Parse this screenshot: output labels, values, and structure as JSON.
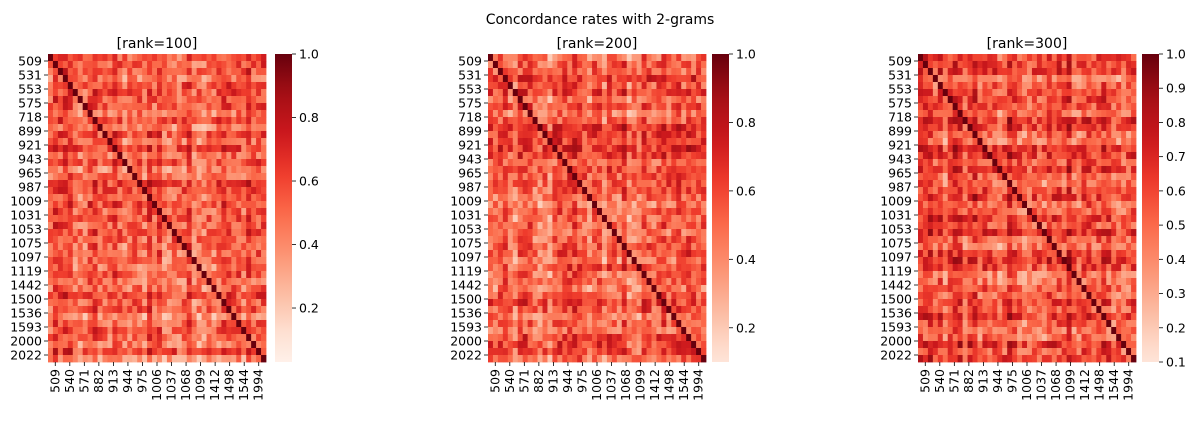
{
  "figure": {
    "suptitle": "Concordance rates with 2-grams"
  },
  "chart_data": [
    {
      "type": "heatmap",
      "title": "[rank=100]",
      "colormap": "Reds",
      "y_tick_labels": [
        "509",
        "531",
        "553",
        "575",
        "718",
        "899",
        "921",
        "943",
        "965",
        "987",
        "1009",
        "1031",
        "1053",
        "1075",
        "1097",
        "1119",
        "1442",
        "1500",
        "1536",
        "1593",
        "2000",
        "2022"
      ],
      "x_tick_labels": [
        "509",
        "540",
        "571",
        "882",
        "913",
        "944",
        "975",
        "1006",
        "1037",
        "1068",
        "1099",
        "1412",
        "1498",
        "1544",
        "1994"
      ],
      "colorbar": {
        "range": [
          0.03,
          1.0
        ],
        "ticks": [
          0.2,
          0.4,
          0.6,
          0.8,
          1.0
        ],
        "tick_labels": [
          "0.2",
          "0.4",
          "0.6",
          "0.8",
          "1.0"
        ]
      }
    },
    {
      "type": "heatmap",
      "title": "[rank=200]",
      "colormap": "Reds",
      "y_tick_labels": [
        "509",
        "531",
        "553",
        "575",
        "718",
        "899",
        "921",
        "943",
        "965",
        "987",
        "1009",
        "1031",
        "1053",
        "1075",
        "1097",
        "1119",
        "1442",
        "1500",
        "1536",
        "1593",
        "2000",
        "2022"
      ],
      "x_tick_labels": [
        "509",
        "540",
        "571",
        "882",
        "913",
        "944",
        "975",
        "1006",
        "1037",
        "1068",
        "1099",
        "1412",
        "1498",
        "1544",
        "1994"
      ],
      "colorbar": {
        "range": [
          0.1,
          1.0
        ],
        "ticks": [
          0.2,
          0.4,
          0.6,
          0.8,
          1.0
        ],
        "tick_labels": [
          "0.2",
          "0.4",
          "0.6",
          "0.8",
          "1.0"
        ]
      }
    },
    {
      "type": "heatmap",
      "title": "[rank=300]",
      "colormap": "Reds",
      "y_tick_labels": [
        "509",
        "531",
        "553",
        "575",
        "718",
        "899",
        "921",
        "943",
        "965",
        "987",
        "1009",
        "1031",
        "1053",
        "1075",
        "1097",
        "1119",
        "1442",
        "1500",
        "1536",
        "1593",
        "2000",
        "2022"
      ],
      "x_tick_labels": [
        "509",
        "540",
        "571",
        "882",
        "913",
        "944",
        "975",
        "1006",
        "1037",
        "1068",
        "1099",
        "1412",
        "1498",
        "1544",
        "1994"
      ],
      "colorbar": {
        "range": [
          0.1,
          1.0
        ],
        "ticks": [
          0.1,
          0.2,
          0.3,
          0.4,
          0.5,
          0.6,
          0.7,
          0.8,
          0.9,
          1.0
        ],
        "tick_labels": [
          "0.1",
          "0.2",
          "0.3",
          "0.4",
          "0.5",
          "0.6",
          "0.7",
          "0.8",
          "0.9",
          "1.0"
        ]
      }
    }
  ]
}
